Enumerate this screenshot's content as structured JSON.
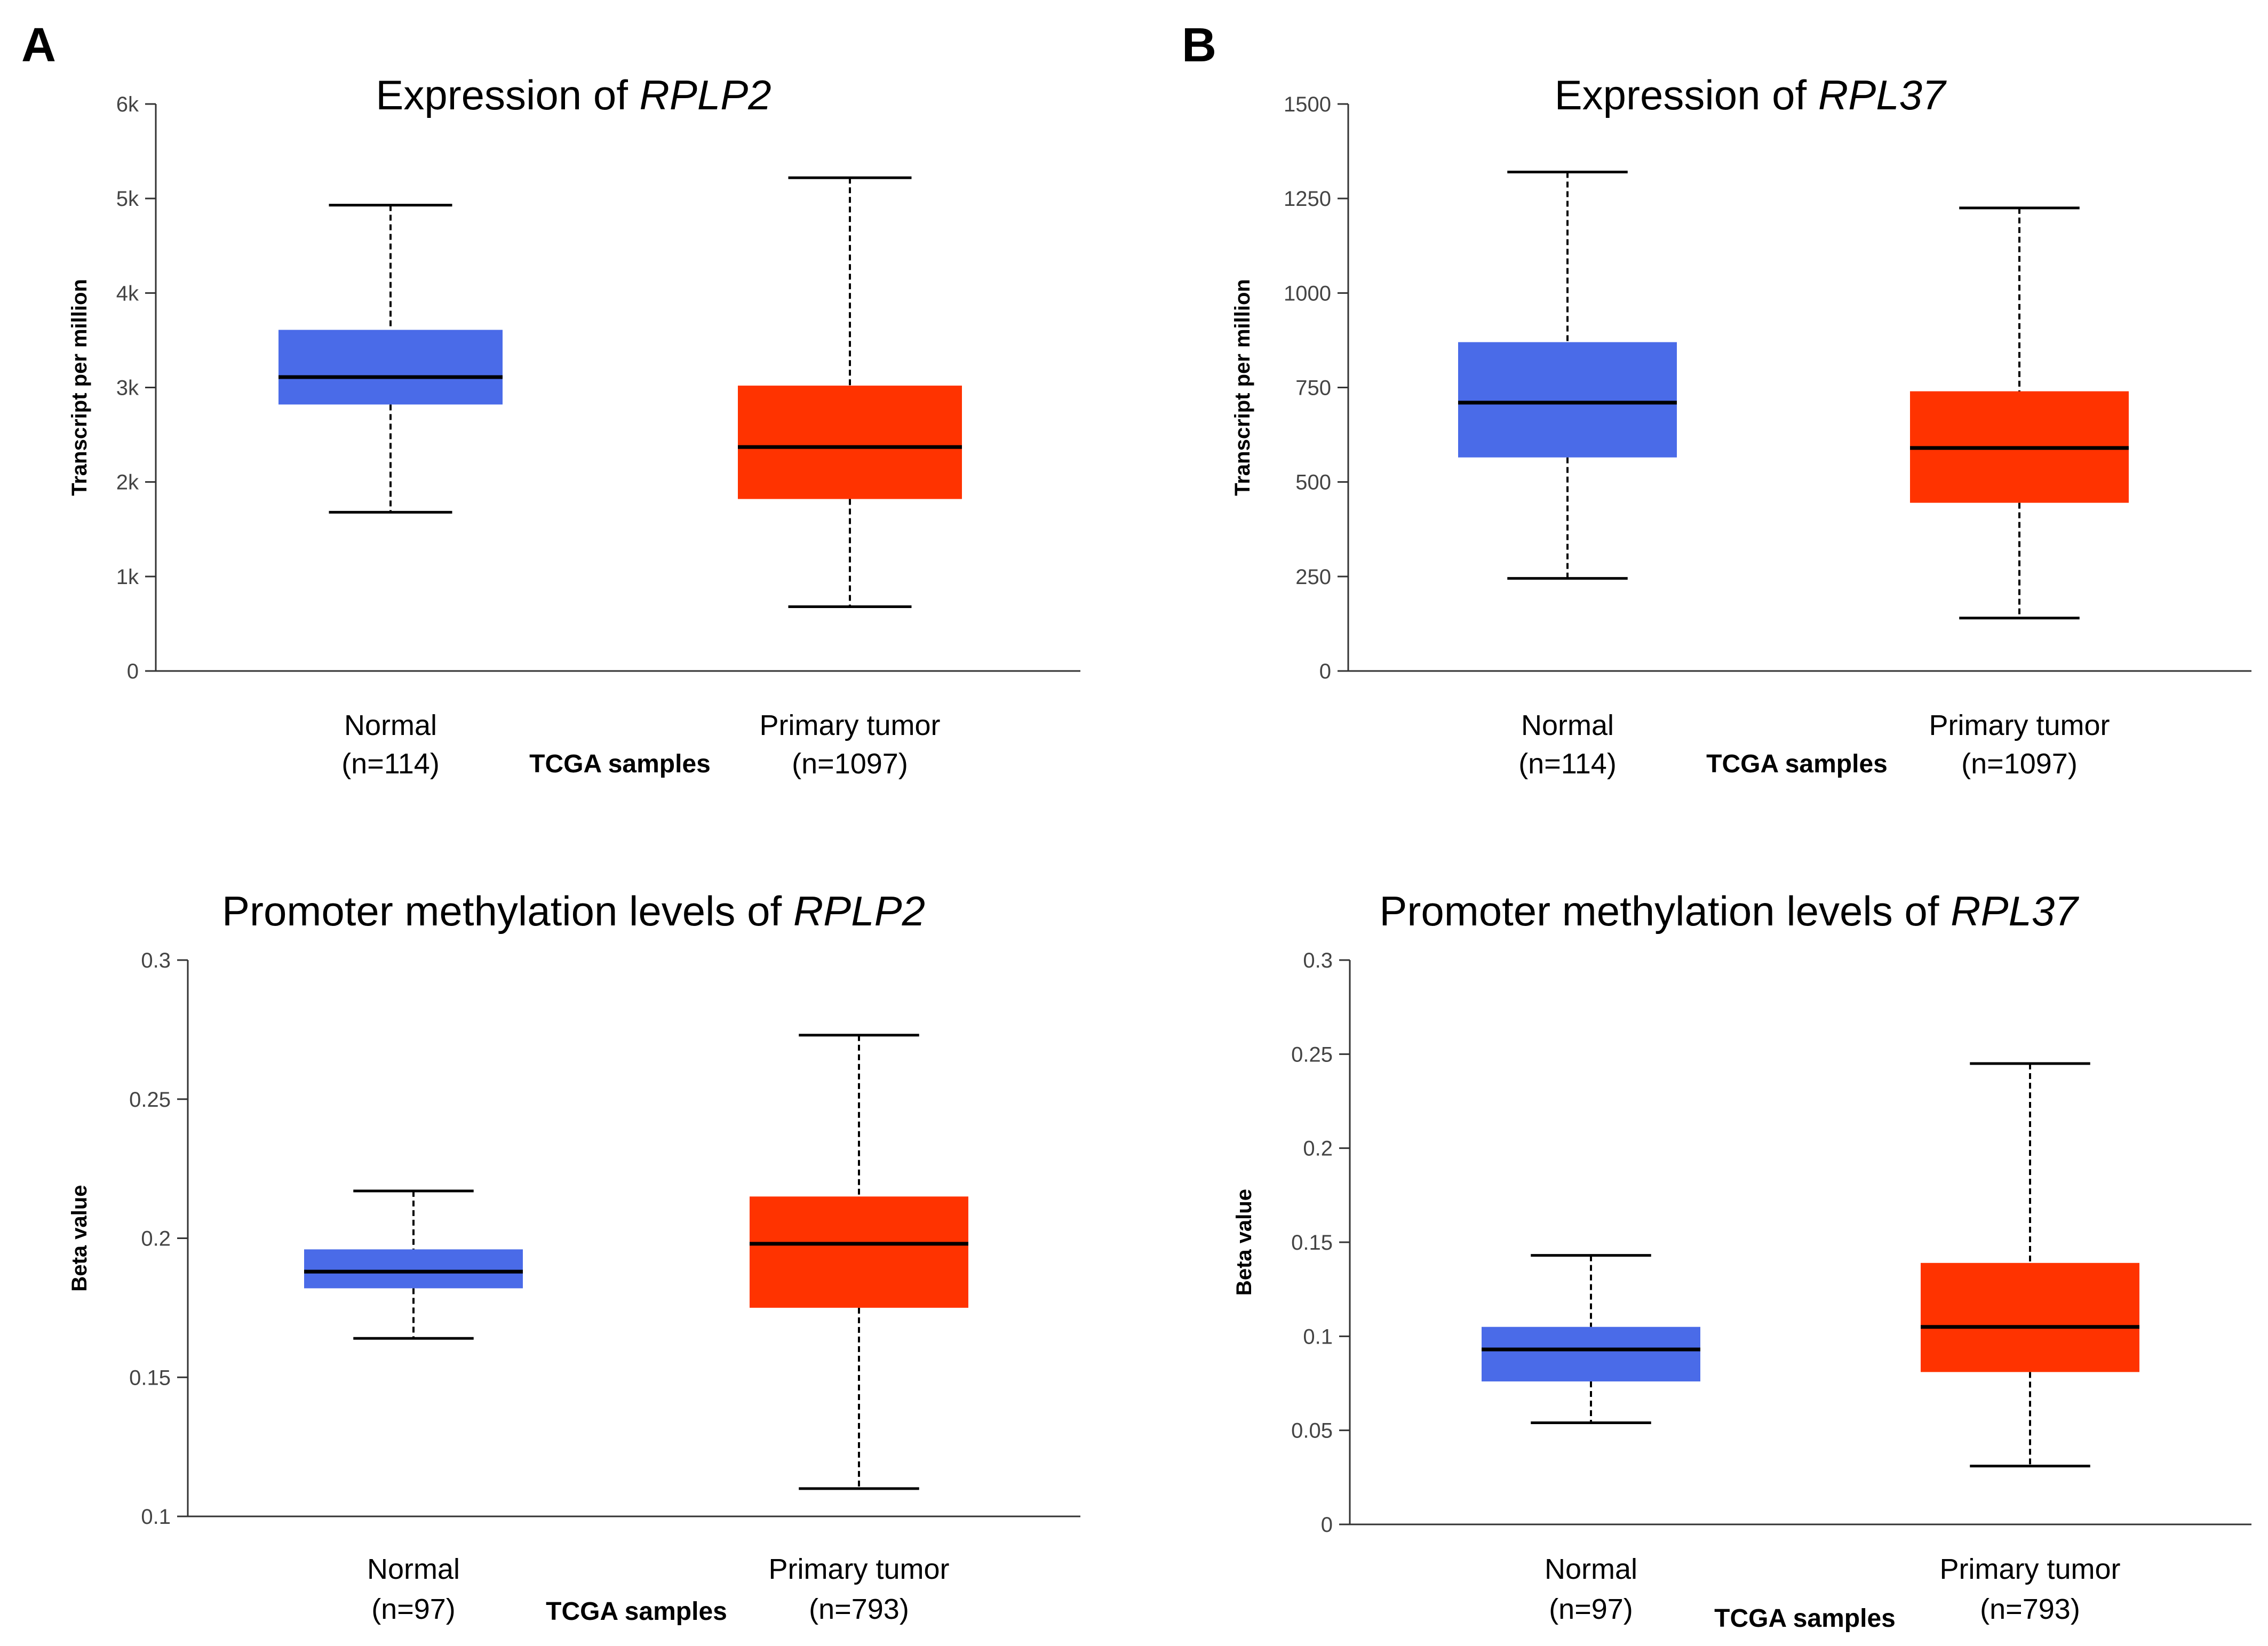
{
  "panels": [
    {
      "letter": "A"
    },
    {
      "letter": "B"
    }
  ],
  "chart_data": [
    {
      "type": "box",
      "panel": "A",
      "title_prefix": "Expression of ",
      "title_gene": "RPLP2",
      "ylabel": "Transcript per million",
      "xlabel": "TCGA samples",
      "ylim": [
        0,
        6000
      ],
      "yticks": [
        0,
        1000,
        2000,
        3000,
        4000,
        5000,
        6000
      ],
      "ytick_labels": [
        "0",
        "1k",
        "2k",
        "3k",
        "4k",
        "5k",
        "6k"
      ],
      "categories": [
        {
          "name": "Normal",
          "n": "(n=114)",
          "color": "#4A6BE8",
          "min": 1680,
          "q1": 2820,
          "median": 3110,
          "q3": 3610,
          "max": 4930
        },
        {
          "name": "Primary tumor",
          "n": "(n=1097)",
          "color": "#FF3300",
          "min": 680,
          "q1": 1820,
          "median": 2370,
          "q3": 3020,
          "max": 5220
        }
      ]
    },
    {
      "type": "box",
      "panel": "B",
      "title_prefix": "Expression of ",
      "title_gene": "RPL37",
      "ylabel": "Transcript per million",
      "xlabel": "TCGA samples",
      "ylim": [
        0,
        1500
      ],
      "yticks": [
        0,
        250,
        500,
        750,
        1000,
        1250,
        1500
      ],
      "ytick_labels": [
        "0",
        "250",
        "500",
        "750",
        "1000",
        "1250",
        "1500"
      ],
      "categories": [
        {
          "name": "Normal",
          "n": "(n=114)",
          "color": "#4A6BE8",
          "min": 245,
          "q1": 565,
          "median": 710,
          "q3": 870,
          "max": 1320
        },
        {
          "name": "Primary tumor",
          "n": "(n=1097)",
          "color": "#FF3300",
          "min": 140,
          "q1": 445,
          "median": 590,
          "q3": 740,
          "max": 1225
        }
      ]
    },
    {
      "type": "box",
      "panel": "A",
      "title_prefix": "Promoter methylation levels of ",
      "title_gene": "RPLP2",
      "ylabel": "Beta value",
      "xlabel": "TCGA samples",
      "ylim": [
        0.1,
        0.3
      ],
      "yticks": [
        0.1,
        0.15,
        0.2,
        0.25,
        0.3
      ],
      "ytick_labels": [
        "0.1",
        "0.15",
        "0.2",
        "0.25",
        "0.3"
      ],
      "categories": [
        {
          "name": "Normal",
          "n": "(n=97)",
          "color": "#4A6BE8",
          "min": 0.164,
          "q1": 0.182,
          "median": 0.188,
          "q3": 0.196,
          "max": 0.217
        },
        {
          "name": "Primary tumor",
          "n": "(n=793)",
          "color": "#FF3300",
          "min": 0.11,
          "q1": 0.175,
          "median": 0.198,
          "q3": 0.215,
          "max": 0.273
        }
      ]
    },
    {
      "type": "box",
      "panel": "B",
      "title_prefix": "Promoter methylation levels of ",
      "title_gene": "RPL37",
      "ylabel": "Beta value",
      "xlabel": "TCGA samples",
      "ylim": [
        0,
        0.3
      ],
      "yticks": [
        0,
        0.05,
        0.1,
        0.15,
        0.2,
        0.25,
        0.3
      ],
      "ytick_labels": [
        "0",
        "0.05",
        "0.1",
        "0.15",
        "0.2",
        "0.25",
        "0.3"
      ],
      "categories": [
        {
          "name": "Normal",
          "n": "(n=97)",
          "color": "#4A6BE8",
          "min": 0.054,
          "q1": 0.076,
          "median": 0.093,
          "q3": 0.105,
          "max": 0.143
        },
        {
          "name": "Primary tumor",
          "n": "(n=793)",
          "color": "#FF3300",
          "min": 0.031,
          "q1": 0.081,
          "median": 0.105,
          "q3": 0.139,
          "max": 0.245
        }
      ]
    }
  ]
}
